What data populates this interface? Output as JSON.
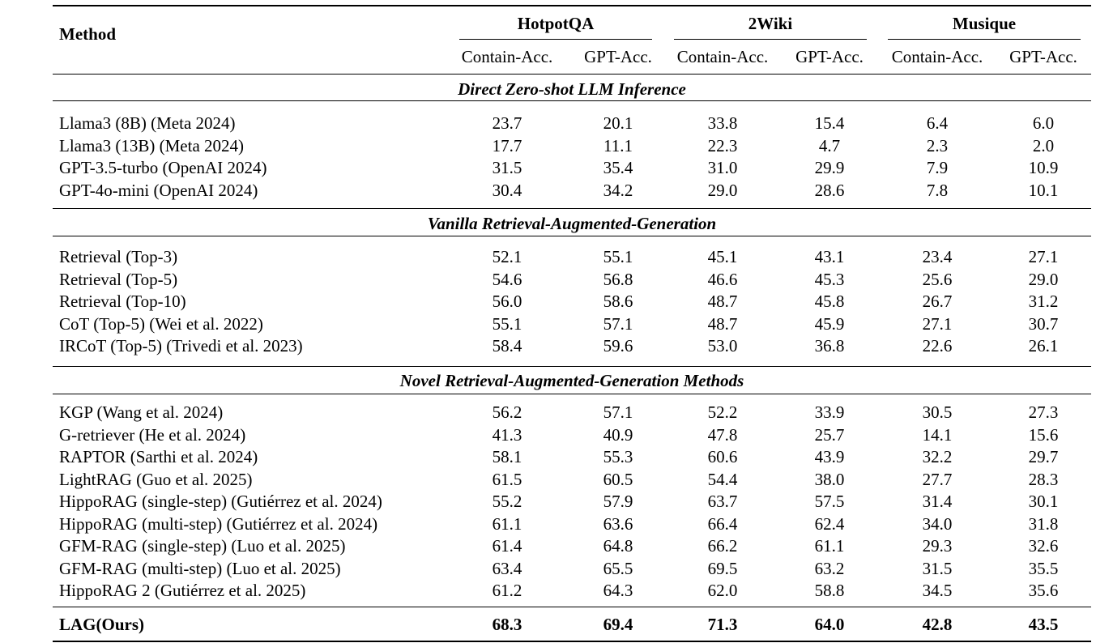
{
  "header": {
    "method_label": "Method",
    "groups": [
      "HotpotQA",
      "2Wiki",
      "Musique"
    ],
    "metrics": [
      "Contain-Acc.",
      "GPT-Acc.",
      "Contain-Acc.",
      "GPT-Acc.",
      "Contain-Acc.",
      "GPT-Acc."
    ]
  },
  "sections": [
    {
      "title": "Direct Zero-shot LLM Inference",
      "rows": [
        {
          "method": "Llama3 (8B) (Meta 2024)",
          "values": [
            "23.7",
            "20.1",
            "33.8",
            "15.4",
            "6.4",
            "6.0"
          ]
        },
        {
          "method": "Llama3 (13B) (Meta 2024)",
          "values": [
            "17.7",
            "11.1",
            "22.3",
            "4.7",
            "2.3",
            "2.0"
          ]
        },
        {
          "method": "GPT-3.5-turbo (OpenAI 2024)",
          "values": [
            "31.5",
            "35.4",
            "31.0",
            "29.9",
            "7.9",
            "10.9"
          ]
        },
        {
          "method": "GPT-4o-mini (OpenAI 2024)",
          "values": [
            "30.4",
            "34.2",
            "29.0",
            "28.6",
            "7.8",
            "10.1"
          ]
        }
      ]
    },
    {
      "title": "Vanilla Retrieval-Augmented-Generation",
      "rows": [
        {
          "method": "Retrieval (Top-3)",
          "values": [
            "52.1",
            "55.1",
            "45.1",
            "43.1",
            "23.4",
            "27.1"
          ]
        },
        {
          "method": "Retrieval (Top-5)",
          "values": [
            "54.6",
            "56.8",
            "46.6",
            "45.3",
            "25.6",
            "29.0"
          ]
        },
        {
          "method": "Retrieval (Top-10)",
          "values": [
            "56.0",
            "58.6",
            "48.7",
            "45.8",
            "26.7",
            "31.2"
          ]
        },
        {
          "method": "CoT (Top-5) (Wei et al. 2022)",
          "values": [
            "55.1",
            "57.1",
            "48.7",
            "45.9",
            "27.1",
            "30.7"
          ]
        },
        {
          "method": "IRCoT (Top-5) (Trivedi et al. 2023)",
          "values": [
            "58.4",
            "59.6",
            "53.0",
            "36.8",
            "22.6",
            "26.1"
          ]
        }
      ]
    },
    {
      "title": "Novel Retrieval-Augmented-Generation Methods",
      "rows": [
        {
          "method": "KGP (Wang et al. 2024)",
          "values": [
            "56.2",
            "57.1",
            "52.2",
            "33.9",
            "30.5",
            "27.3"
          ]
        },
        {
          "method": "G-retriever  (He et al. 2024)",
          "values": [
            "41.3",
            "40.9",
            "47.8",
            "25.7",
            "14.1",
            "15.6"
          ]
        },
        {
          "method": "RAPTOR  (Sarthi et al. 2024)",
          "values": [
            "58.1",
            "55.3",
            "60.6",
            "43.9",
            "32.2",
            "29.7"
          ]
        },
        {
          "method": "LightRAG  (Guo et al. 2025)",
          "values": [
            "61.5",
            "60.5",
            "54.4",
            "38.0",
            "27.7",
            "28.3"
          ]
        },
        {
          "method": "HippoRAG (single-step) (Gutiérrez et al. 2024)",
          "values": [
            "55.2",
            "57.9",
            "63.7",
            "57.5",
            "31.4",
            "30.1"
          ]
        },
        {
          "method": "HippoRAG (multi-step) (Gutiérrez et al. 2024)",
          "values": [
            "61.1",
            "63.6",
            "66.4",
            "62.4",
            "34.0",
            "31.8"
          ]
        },
        {
          "method": "GFM-RAG (single-step)  (Luo et al. 2025)",
          "values": [
            "61.4",
            "64.8",
            "66.2",
            "61.1",
            "29.3",
            "32.6"
          ]
        },
        {
          "method": "GFM-RAG (multi-step) (Luo et al. 2025)",
          "values": [
            "63.4",
            "65.5",
            "69.5",
            "63.2",
            "31.5",
            "35.5"
          ]
        },
        {
          "method": "HippoRAG 2 (Gutiérrez et al. 2025)",
          "values": [
            "61.2",
            "64.3",
            "62.0",
            "58.8",
            "34.5",
            "35.6"
          ]
        }
      ]
    }
  ],
  "ours": {
    "method": "LAG(Ours)",
    "values": [
      "68.3",
      "69.4",
      "71.3",
      "64.0",
      "42.8",
      "43.5"
    ]
  }
}
